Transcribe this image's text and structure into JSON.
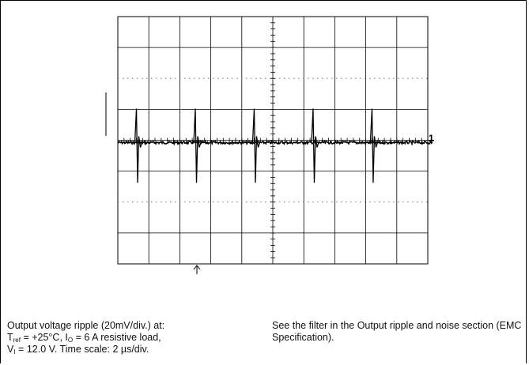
{
  "chart_data": {
    "type": "line",
    "title": "",
    "xlabel": "",
    "ylabel": "",
    "grid": true,
    "divisions": {
      "x": 10,
      "y": 8
    },
    "volts_per_div_mV": 20,
    "time_per_div_us": 2,
    "channel_label": "1",
    "trace": {
      "name": "",
      "baseline_div": 0,
      "spikes_at_div": [
        0.6,
        2.5,
        4.4,
        6.3,
        8.2
      ],
      "spike_up_div": 1.1,
      "spike_down_div": -1.3
    }
  },
  "caption_left": {
    "line1": "Output voltage ripple (20mV/div.) at:",
    "t_sym": "T",
    "t_sub": "ref",
    "t_rest": " = +25°C, I",
    "i_sub": "O",
    "i_rest": " = 6 A resistive load,",
    "v_sym": "V",
    "v_sub": "I",
    "v_rest": " = 12.0 V. Time scale: 2 µs/div."
  },
  "caption_right": {
    "text": "See the filter in the Output ripple and noise section (EMC Specification)."
  }
}
